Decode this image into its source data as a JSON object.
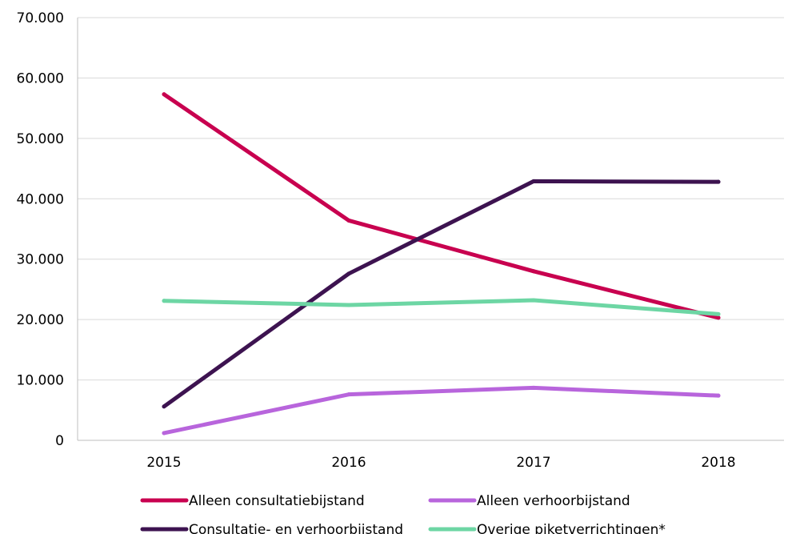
{
  "chart_data": {
    "type": "line",
    "title": "",
    "xlabel": "",
    "ylabel": "",
    "categories": [
      "2015",
      "2016",
      "2017",
      "2018"
    ],
    "ylim": [
      0,
      70000
    ],
    "yticks": [
      0,
      10000,
      20000,
      30000,
      40000,
      50000,
      60000,
      70000
    ],
    "ytick_labels": [
      "0",
      "10.000",
      "20.000",
      "30.000",
      "40.000",
      "50.000",
      "60.000",
      "70.000"
    ],
    "grid": "horizontal",
    "legend_position": "bottom",
    "series": [
      {
        "name": "Alleen consultatiebijstand",
        "color": "#c8004f",
        "values": [
          57300,
          36400,
          28000,
          20300
        ]
      },
      {
        "name": "Alleen verhoorbijstand",
        "color": "#b865dc",
        "values": [
          1200,
          7600,
          8700,
          7400
        ]
      },
      {
        "name": "Consultatie- en verhoorbijstand",
        "color": "#3d1350",
        "values": [
          5600,
          27600,
          42900,
          42800
        ]
      },
      {
        "name": "Overige piketverrichtingen*",
        "color": "#6dd6a4",
        "values": [
          23100,
          22400,
          23200,
          20900
        ]
      }
    ]
  }
}
